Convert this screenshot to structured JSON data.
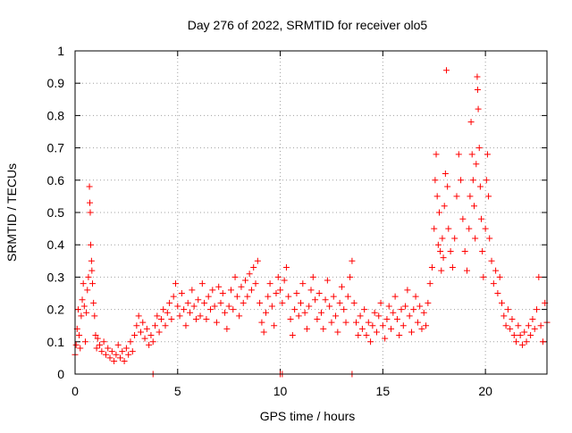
{
  "chart_data": {
    "type": "scatter",
    "title": "Day 276 of 2022, SRMTID for receiver olo5",
    "xlabel": "GPS time / hours",
    "ylabel": "SRMTID / TECUs",
    "xlim": [
      0,
      23
    ],
    "ylim": [
      0,
      1
    ],
    "xticks": [
      0,
      5,
      10,
      15,
      20
    ],
    "xtick_labels": [
      "0",
      "5",
      "10",
      "15",
      "20"
    ],
    "yticks": [
      0,
      0.1,
      0.2,
      0.3,
      0.4,
      0.5,
      0.6,
      0.7,
      0.8,
      0.9,
      1
    ],
    "ytick_labels": [
      "0",
      "0.1",
      "0.2",
      "0.3",
      "0.4",
      "0.5",
      "0.6",
      "0.7",
      "0.8",
      "0.9",
      "1"
    ],
    "grid": true,
    "marker": "plus",
    "color": "#ff0000",
    "series": [
      {
        "name": "SRMTID",
        "points": [
          [
            0.0,
            0.06
          ],
          [
            0.05,
            0.09
          ],
          [
            0.1,
            0.14
          ],
          [
            0.15,
            0.2
          ],
          [
            0.2,
            0.12
          ],
          [
            0.25,
            0.08
          ],
          [
            0.3,
            0.18
          ],
          [
            0.35,
            0.23
          ],
          [
            0.4,
            0.28
          ],
          [
            0.45,
            0.21
          ],
          [
            0.5,
            0.1
          ],
          [
            0.55,
            0.19
          ],
          [
            0.6,
            0.26
          ],
          [
            0.65,
            0.3
          ],
          [
            0.7,
            0.58
          ],
          [
            0.72,
            0.53
          ],
          [
            0.74,
            0.5
          ],
          [
            0.76,
            0.4
          ],
          [
            0.8,
            0.35
          ],
          [
            0.82,
            0.32
          ],
          [
            0.85,
            0.28
          ],
          [
            0.9,
            0.22
          ],
          [
            0.95,
            0.18
          ],
          [
            1.0,
            0.12
          ],
          [
            1.05,
            0.08
          ],
          [
            1.1,
            0.11
          ],
          [
            1.2,
            0.09
          ],
          [
            1.3,
            0.07
          ],
          [
            1.4,
            0.1
          ],
          [
            1.5,
            0.06
          ],
          [
            1.6,
            0.08
          ],
          [
            1.7,
            0.05
          ],
          [
            1.8,
            0.07
          ],
          [
            1.9,
            0.04
          ],
          [
            2.0,
            0.06
          ],
          [
            2.1,
            0.09
          ],
          [
            2.2,
            0.05
          ],
          [
            2.3,
            0.07
          ],
          [
            2.4,
            0.04
          ],
          [
            2.5,
            0.08
          ],
          [
            2.6,
            0.06
          ],
          [
            2.7,
            0.1
          ],
          [
            2.8,
            0.07
          ],
          [
            2.9,
            0.12
          ],
          [
            3.0,
            0.15
          ],
          [
            3.1,
            0.18
          ],
          [
            3.2,
            0.13
          ],
          [
            3.3,
            0.16
          ],
          [
            3.4,
            0.11
          ],
          [
            3.5,
            0.14
          ],
          [
            3.6,
            0.09
          ],
          [
            3.7,
            0.12
          ],
          [
            3.8,
            0.1
          ],
          [
            3.9,
            0.15
          ],
          [
            4.0,
            0.18
          ],
          [
            4.1,
            0.13
          ],
          [
            4.2,
            0.17
          ],
          [
            4.3,
            0.2
          ],
          [
            4.4,
            0.15
          ],
          [
            4.5,
            0.19
          ],
          [
            4.6,
            0.22
          ],
          [
            4.7,
            0.17
          ],
          [
            4.8,
            0.24
          ],
          [
            4.9,
            0.28
          ],
          [
            5.0,
            0.21
          ],
          [
            5.1,
            0.18
          ],
          [
            5.2,
            0.25
          ],
          [
            5.3,
            0.2
          ],
          [
            5.4,
            0.15
          ],
          [
            5.5,
            0.22
          ],
          [
            5.6,
            0.19
          ],
          [
            5.7,
            0.26
          ],
          [
            5.8,
            0.21
          ],
          [
            5.9,
            0.17
          ],
          [
            6.0,
            0.23
          ],
          [
            6.1,
            0.18
          ],
          [
            6.2,
            0.28
          ],
          [
            6.3,
            0.22
          ],
          [
            6.4,
            0.17
          ],
          [
            6.5,
            0.24
          ],
          [
            6.6,
            0.2
          ],
          [
            6.7,
            0.26
          ],
          [
            6.8,
            0.21
          ],
          [
            6.9,
            0.16
          ],
          [
            7.0,
            0.27
          ],
          [
            7.1,
            0.22
          ],
          [
            7.2,
            0.25
          ],
          [
            7.3,
            0.19
          ],
          [
            7.4,
            0.14
          ],
          [
            7.5,
            0.21
          ],
          [
            7.6,
            0.26
          ],
          [
            7.7,
            0.2
          ],
          [
            7.8,
            0.3
          ],
          [
            7.9,
            0.24
          ],
          [
            8.0,
            0.18
          ],
          [
            8.1,
            0.27
          ],
          [
            8.2,
            0.22
          ],
          [
            8.3,
            0.29
          ],
          [
            8.4,
            0.24
          ],
          [
            8.5,
            0.31
          ],
          [
            8.6,
            0.26
          ],
          [
            8.7,
            0.33
          ],
          [
            8.8,
            0.28
          ],
          [
            8.9,
            0.35
          ],
          [
            9.0,
            0.22
          ],
          [
            9.1,
            0.16
          ],
          [
            9.2,
            0.13
          ],
          [
            9.3,
            0.19
          ],
          [
            9.4,
            0.24
          ],
          [
            9.5,
            0.28
          ],
          [
            9.6,
            0.21
          ],
          [
            9.7,
            0.15
          ],
          [
            9.8,
            0.25
          ],
          [
            9.9,
            0.3
          ],
          [
            10.0,
            0.26
          ],
          [
            10.1,
            0.22
          ],
          [
            10.2,
            0.29
          ],
          [
            10.3,
            0.33
          ],
          [
            10.4,
            0.24
          ],
          [
            10.5,
            0.17
          ],
          [
            10.6,
            0.12
          ],
          [
            10.7,
            0.2
          ],
          [
            10.8,
            0.25
          ],
          [
            10.9,
            0.18
          ],
          [
            11.0,
            0.22
          ],
          [
            11.1,
            0.28
          ],
          [
            11.2,
            0.19
          ],
          [
            11.3,
            0.14
          ],
          [
            11.4,
            0.21
          ],
          [
            11.5,
            0.26
          ],
          [
            11.6,
            0.3
          ],
          [
            11.7,
            0.23
          ],
          [
            11.8,
            0.17
          ],
          [
            11.9,
            0.25
          ],
          [
            12.0,
            0.19
          ],
          [
            12.1,
            0.14
          ],
          [
            12.2,
            0.23
          ],
          [
            12.3,
            0.29
          ],
          [
            12.4,
            0.21
          ],
          [
            12.5,
            0.16
          ],
          [
            12.6,
            0.24
          ],
          [
            12.7,
            0.18
          ],
          [
            12.8,
            0.13
          ],
          [
            12.9,
            0.22
          ],
          [
            13.0,
            0.27
          ],
          [
            13.1,
            0.2
          ],
          [
            13.2,
            0.16
          ],
          [
            13.3,
            0.24
          ],
          [
            13.4,
            0.3
          ],
          [
            13.5,
            0.35
          ],
          [
            13.6,
            0.22
          ],
          [
            13.7,
            0.16
          ],
          [
            13.8,
            0.12
          ],
          [
            13.9,
            0.18
          ],
          [
            14.0,
            0.14
          ],
          [
            14.1,
            0.2
          ],
          [
            14.2,
            0.12
          ],
          [
            14.3,
            0.16
          ],
          [
            14.4,
            0.1
          ],
          [
            14.5,
            0.15
          ],
          [
            14.6,
            0.19
          ],
          [
            14.7,
            0.13
          ],
          [
            14.8,
            0.18
          ],
          [
            14.9,
            0.22
          ],
          [
            15.0,
            0.15
          ],
          [
            15.1,
            0.11
          ],
          [
            15.2,
            0.17
          ],
          [
            15.3,
            0.21
          ],
          [
            15.4,
            0.14
          ],
          [
            15.5,
            0.19
          ],
          [
            15.6,
            0.24
          ],
          [
            15.7,
            0.17
          ],
          [
            15.8,
            0.12
          ],
          [
            15.9,
            0.2
          ],
          [
            16.0,
            0.15
          ],
          [
            16.1,
            0.21
          ],
          [
            16.2,
            0.26
          ],
          [
            16.3,
            0.18
          ],
          [
            16.4,
            0.13
          ],
          [
            16.5,
            0.2
          ],
          [
            16.6,
            0.24
          ],
          [
            16.7,
            0.16
          ],
          [
            16.8,
            0.21
          ],
          [
            16.9,
            0.14
          ],
          [
            17.0,
            0.19
          ],
          [
            17.1,
            0.15
          ],
          [
            17.2,
            0.22
          ],
          [
            17.3,
            0.28
          ],
          [
            17.4,
            0.33
          ],
          [
            17.5,
            0.45
          ],
          [
            17.55,
            0.6
          ],
          [
            17.6,
            0.68
          ],
          [
            17.65,
            0.55
          ],
          [
            17.7,
            0.4
          ],
          [
            17.75,
            0.5
          ],
          [
            17.8,
            0.38
          ],
          [
            17.85,
            0.32
          ],
          [
            17.9,
            0.42
          ],
          [
            17.95,
            0.36
          ],
          [
            18.0,
            0.52
          ],
          [
            18.05,
            0.62
          ],
          [
            18.1,
            0.94
          ],
          [
            18.15,
            0.58
          ],
          [
            18.2,
            0.45
          ],
          [
            18.3,
            0.38
          ],
          [
            18.4,
            0.33
          ],
          [
            18.5,
            0.42
          ],
          [
            18.6,
            0.55
          ],
          [
            18.7,
            0.68
          ],
          [
            18.8,
            0.6
          ],
          [
            18.9,
            0.48
          ],
          [
            19.0,
            0.38
          ],
          [
            19.1,
            0.32
          ],
          [
            19.2,
            0.45
          ],
          [
            19.25,
            0.55
          ],
          [
            19.3,
            0.78
          ],
          [
            19.35,
            0.68
          ],
          [
            19.4,
            0.6
          ],
          [
            19.45,
            0.52
          ],
          [
            19.5,
            0.42
          ],
          [
            19.55,
            0.65
          ],
          [
            19.6,
            0.92
          ],
          [
            19.62,
            0.88
          ],
          [
            19.65,
            0.82
          ],
          [
            19.7,
            0.7
          ],
          [
            19.75,
            0.58
          ],
          [
            19.8,
            0.48
          ],
          [
            19.85,
            0.38
          ],
          [
            19.9,
            0.3
          ],
          [
            20.0,
            0.45
          ],
          [
            20.05,
            0.6
          ],
          [
            20.1,
            0.68
          ],
          [
            20.15,
            0.55
          ],
          [
            20.2,
            0.42
          ],
          [
            20.3,
            0.35
          ],
          [
            20.4,
            0.28
          ],
          [
            20.5,
            0.32
          ],
          [
            20.6,
            0.25
          ],
          [
            20.7,
            0.3
          ],
          [
            20.8,
            0.22
          ],
          [
            20.9,
            0.18
          ],
          [
            21.0,
            0.15
          ],
          [
            21.1,
            0.2
          ],
          [
            21.2,
            0.14
          ],
          [
            21.3,
            0.17
          ],
          [
            21.4,
            0.12
          ],
          [
            21.5,
            0.1
          ],
          [
            21.6,
            0.15
          ],
          [
            21.7,
            0.12
          ],
          [
            21.8,
            0.09
          ],
          [
            21.9,
            0.13
          ],
          [
            22.0,
            0.1
          ],
          [
            22.1,
            0.15
          ],
          [
            22.2,
            0.12
          ],
          [
            22.3,
            0.17
          ],
          [
            22.4,
            0.14
          ],
          [
            22.5,
            0.2
          ],
          [
            22.6,
            0.3
          ],
          [
            22.7,
            0.15
          ],
          [
            22.8,
            0.1
          ],
          [
            22.9,
            0.22
          ],
          [
            23.0,
            0.16
          ]
        ]
      }
    ],
    "zero_points": [
      3.8,
      10.0,
      10.1,
      13.5
    ]
  }
}
